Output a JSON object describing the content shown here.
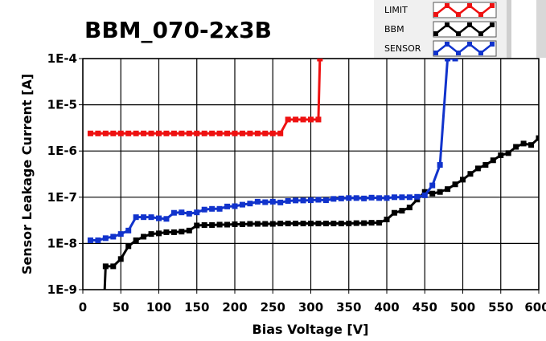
{
  "chart_data": {
    "type": "line",
    "title": "BBM_070-2x3B",
    "xlabel": "Bias Voltage [V]",
    "ylabel": "Sensor Leakage Current [A]",
    "xlim": [
      0,
      600
    ],
    "ylim": [
      1e-09,
      0.0001
    ],
    "yscale": "log",
    "grid": true,
    "legend_position": "top-right",
    "xticks": [
      "0",
      "50",
      "100",
      "150",
      "200",
      "250",
      "300",
      "350",
      "400",
      "450",
      "500",
      "550",
      "600"
    ],
    "yticks": [
      "1E-9",
      "1E-8",
      "1E-7",
      "1E-6",
      "1E-5",
      "1E-4"
    ],
    "series": [
      {
        "name": "LIMIT",
        "color": "#ee1111",
        "points": [
          [
            10,
            2.4e-06
          ],
          [
            20,
            2.4e-06
          ],
          [
            30,
            2.4e-06
          ],
          [
            40,
            2.4e-06
          ],
          [
            50,
            2.4e-06
          ],
          [
            60,
            2.4e-06
          ],
          [
            70,
            2.4e-06
          ],
          [
            80,
            2.4e-06
          ],
          [
            90,
            2.4e-06
          ],
          [
            100,
            2.4e-06
          ],
          [
            110,
            2.4e-06
          ],
          [
            120,
            2.4e-06
          ],
          [
            130,
            2.4e-06
          ],
          [
            140,
            2.4e-06
          ],
          [
            150,
            2.4e-06
          ],
          [
            160,
            2.4e-06
          ],
          [
            170,
            2.4e-06
          ],
          [
            180,
            2.4e-06
          ],
          [
            190,
            2.4e-06
          ],
          [
            200,
            2.4e-06
          ],
          [
            210,
            2.4e-06
          ],
          [
            220,
            2.4e-06
          ],
          [
            230,
            2.4e-06
          ],
          [
            240,
            2.4e-06
          ],
          [
            250,
            2.4e-06
          ],
          [
            260,
            2.4e-06
          ],
          [
            270,
            4.8e-06
          ],
          [
            280,
            4.8e-06
          ],
          [
            290,
            4.8e-06
          ],
          [
            300,
            4.8e-06
          ],
          [
            310,
            4.8e-06
          ],
          [
            312,
            0.0001
          ]
        ]
      },
      {
        "name": "BBM",
        "color": "#000000",
        "points": [
          [
            28,
            5e-10
          ],
          [
            30,
            3.2e-09
          ],
          [
            40,
            3.2e-09
          ],
          [
            50,
            4.6e-09
          ],
          [
            60,
            8.7e-09
          ],
          [
            70,
            1.17e-08
          ],
          [
            80,
            1.4e-08
          ],
          [
            90,
            1.6e-08
          ],
          [
            100,
            1.65e-08
          ],
          [
            110,
            1.75e-08
          ],
          [
            120,
            1.75e-08
          ],
          [
            130,
            1.8e-08
          ],
          [
            140,
            1.9e-08
          ],
          [
            150,
            2.45e-08
          ],
          [
            160,
            2.5e-08
          ],
          [
            170,
            2.5e-08
          ],
          [
            180,
            2.55e-08
          ],
          [
            190,
            2.55e-08
          ],
          [
            200,
            2.6e-08
          ],
          [
            210,
            2.6e-08
          ],
          [
            220,
            2.65e-08
          ],
          [
            230,
            2.65e-08
          ],
          [
            240,
            2.65e-08
          ],
          [
            250,
            2.65e-08
          ],
          [
            260,
            2.7e-08
          ],
          [
            270,
            2.7e-08
          ],
          [
            280,
            2.7e-08
          ],
          [
            290,
            2.7e-08
          ],
          [
            300,
            2.7e-08
          ],
          [
            310,
            2.7e-08
          ],
          [
            320,
            2.7e-08
          ],
          [
            330,
            2.7e-08
          ],
          [
            340,
            2.7e-08
          ],
          [
            350,
            2.7e-08
          ],
          [
            360,
            2.75e-08
          ],
          [
            370,
            2.75e-08
          ],
          [
            380,
            2.8e-08
          ],
          [
            390,
            2.8e-08
          ],
          [
            400,
            3.3e-08
          ],
          [
            410,
            4.6e-08
          ],
          [
            420,
            5.1e-08
          ],
          [
            430,
            6e-08
          ],
          [
            440,
            8.9e-08
          ],
          [
            450,
            1.3e-07
          ],
          [
            460,
            1.2e-07
          ],
          [
            470,
            1.3e-07
          ],
          [
            480,
            1.5e-07
          ],
          [
            490,
            1.9e-07
          ],
          [
            500,
            2.4e-07
          ],
          [
            510,
            3.2e-07
          ],
          [
            520,
            4.2e-07
          ],
          [
            530,
            5e-07
          ],
          [
            540,
            6.3e-07
          ],
          [
            550,
            8.1e-07
          ],
          [
            560,
            9e-07
          ],
          [
            570,
            1.23e-06
          ],
          [
            580,
            1.45e-06
          ],
          [
            590,
            1.35e-06
          ],
          [
            600,
            1.9e-06
          ]
        ]
      },
      {
        "name": "SENSOR",
        "color": "#1133cc",
        "points": [
          [
            10,
            1.17e-08
          ],
          [
            20,
            1.17e-08
          ],
          [
            30,
            1.3e-08
          ],
          [
            40,
            1.4e-08
          ],
          [
            50,
            1.6e-08
          ],
          [
            60,
            1.9e-08
          ],
          [
            70,
            3.7e-08
          ],
          [
            80,
            3.7e-08
          ],
          [
            90,
            3.7e-08
          ],
          [
            100,
            3.5e-08
          ],
          [
            110,
            3.4e-08
          ],
          [
            120,
            4.6e-08
          ],
          [
            130,
            4.7e-08
          ],
          [
            140,
            4.4e-08
          ],
          [
            150,
            4.7e-08
          ],
          [
            160,
            5.4e-08
          ],
          [
            170,
            5.6e-08
          ],
          [
            180,
            5.6e-08
          ],
          [
            190,
            6.3e-08
          ],
          [
            200,
            6.4e-08
          ],
          [
            210,
            6.9e-08
          ],
          [
            220,
            7.3e-08
          ],
          [
            230,
            8e-08
          ],
          [
            240,
            7.8e-08
          ],
          [
            250,
            8e-08
          ],
          [
            260,
            7.7e-08
          ],
          [
            270,
            8.3e-08
          ],
          [
            280,
            8.5e-08
          ],
          [
            290,
            8.5e-08
          ],
          [
            300,
            8.6e-08
          ],
          [
            310,
            8.8e-08
          ],
          [
            320,
            8.6e-08
          ],
          [
            330,
            9.2e-08
          ],
          [
            340,
            9.4e-08
          ],
          [
            350,
            9.6e-08
          ],
          [
            360,
            9.6e-08
          ],
          [
            370,
            9.4e-08
          ],
          [
            380,
            9.8e-08
          ],
          [
            390,
            9.6e-08
          ],
          [
            400,
            9.6e-08
          ],
          [
            410,
            1e-07
          ],
          [
            420,
            1e-07
          ],
          [
            430,
            1e-07
          ],
          [
            440,
            1.02e-07
          ],
          [
            450,
            1.1e-07
          ],
          [
            460,
            1.8e-07
          ],
          [
            470,
            5e-07
          ],
          [
            480,
            0.0001
          ],
          [
            490,
            0.0001
          ]
        ]
      }
    ]
  }
}
